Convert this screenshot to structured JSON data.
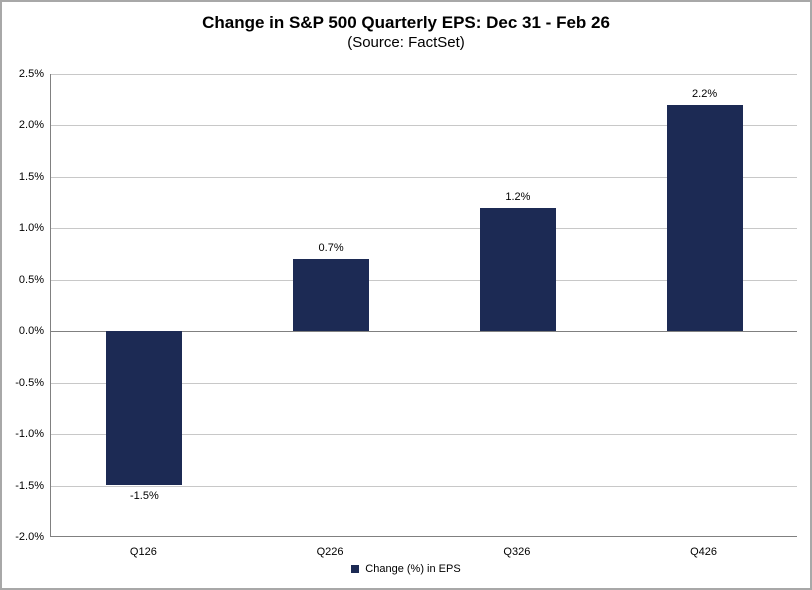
{
  "chart_data": {
    "type": "bar",
    "title": "Change in S&P 500 Quarterly EPS: Dec 31 - Feb 26",
    "subtitle": "(Source: FactSet)",
    "categories": [
      "Q126",
      "Q226",
      "Q326",
      "Q426"
    ],
    "values": [
      -1.5,
      0.7,
      1.2,
      2.2
    ],
    "data_labels": [
      "-1.5%",
      "0.7%",
      "1.2%",
      "2.2%"
    ],
    "xlabel": "",
    "ylabel": "",
    "ylim": [
      -2.0,
      2.5
    ],
    "ytick_step": 0.5,
    "ytick_labels": [
      "-2.0%",
      "-1.5%",
      "-1.0%",
      "-0.5%",
      "0.0%",
      "0.5%",
      "1.0%",
      "1.5%",
      "2.0%",
      "2.5%"
    ],
    "grid": true,
    "legend": {
      "position": "bottom",
      "entries": [
        {
          "label": "Change (%) in EPS",
          "color": "#1c2a54"
        }
      ]
    },
    "colors": {
      "bar": "#1c2a54",
      "gridline": "#c8c8c8",
      "axis": "#808080",
      "frame": "#a8a8a8",
      "background": "#ffffff"
    }
  }
}
